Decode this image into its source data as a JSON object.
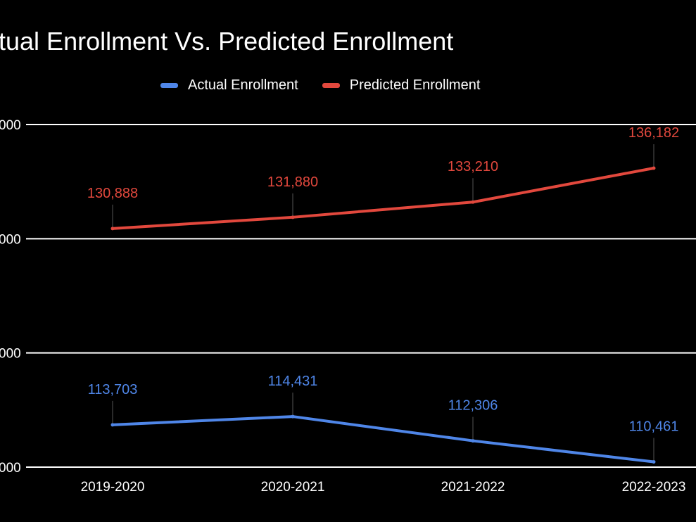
{
  "chart_data": {
    "type": "line",
    "title": "Actual Enrollment Vs. Predicted Enrollment",
    "categories": [
      "2019-2020",
      "2020-2021",
      "2021-2022",
      "2022-2023"
    ],
    "series": [
      {
        "name": "Actual Enrollment",
        "color": "#4f86e8",
        "values": [
          113703,
          114431,
          112306,
          110461
        ],
        "labels": [
          "113,703",
          "114,431",
          "112,306",
          "110,461"
        ]
      },
      {
        "name": "Predicted Enrollment",
        "color": "#e2483d",
        "values": [
          130888,
          131880,
          133210,
          136182
        ],
        "labels": [
          "130,888",
          "131,880",
          "133,210",
          "136,182"
        ]
      }
    ],
    "y_tick_labels": [
      "000",
      "000",
      "000",
      "000"
    ],
    "ylim": [
      110000,
      140000
    ],
    "yticks": [
      110000,
      120000,
      130000,
      140000
    ],
    "grid": true,
    "legend_position": "top"
  }
}
